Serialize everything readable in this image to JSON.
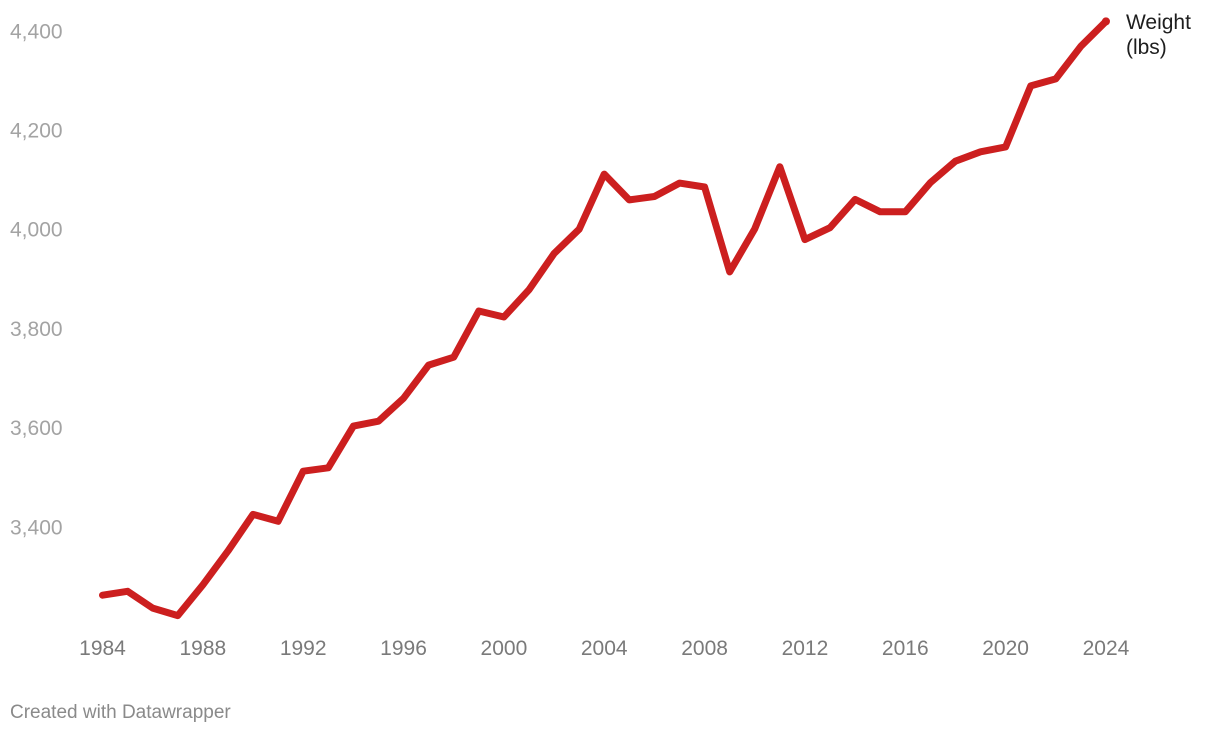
{
  "chart_data": {
    "type": "line",
    "title": "",
    "xlabel": "",
    "ylabel": "",
    "x": [
      1984,
      1985,
      1986,
      1987,
      1988,
      1989,
      1990,
      1991,
      1992,
      1993,
      1994,
      1995,
      1996,
      1997,
      1998,
      1999,
      2000,
      2001,
      2002,
      2003,
      2004,
      2005,
      2006,
      2007,
      2008,
      2009,
      2010,
      2011,
      2012,
      2013,
      2014,
      2015,
      2016,
      2017,
      2018,
      2019,
      2020,
      2021,
      2022,
      2023,
      2024
    ],
    "series": [
      {
        "name": "Weight (lbs)",
        "label_lines": [
          "Weight",
          "(lbs)"
        ],
        "color": "#cc1f1f",
        "values": [
          3262,
          3270,
          3236,
          3221,
          3283,
          3351,
          3425,
          3411,
          3512,
          3519,
          3603,
          3613,
          3659,
          3726,
          3742,
          3835,
          3823,
          3878,
          3951,
          4000,
          4111,
          4059,
          4066,
          4093,
          4085,
          3914,
          4001,
          4126,
          3979,
          4003,
          4060,
          4035,
          4035,
          4094,
          4137,
          4156,
          4166,
          4289,
          4303,
          4369,
          4419
        ]
      }
    ],
    "ylim": [
      3200,
      4450
    ],
    "yticks": [
      3400,
      3600,
      3800,
      4000,
      4200,
      4400
    ],
    "ytick_labels": [
      "3,400",
      "3,600",
      "3,800",
      "4,000",
      "4,200",
      "4,400"
    ],
    "xlim": [
      1983.9,
      2024.4
    ],
    "xticks": [
      1984,
      1988,
      1992,
      1996,
      2000,
      2004,
      2008,
      2012,
      2016,
      2020,
      2024
    ],
    "xtick_labels": [
      "1984",
      "1988",
      "1992",
      "1996",
      "2000",
      "2004",
      "2008",
      "2012",
      "2016",
      "2020",
      "2024"
    ],
    "grid": false,
    "legend": "direct label at line end"
  },
  "footer": {
    "credit": "Created with Datawrapper"
  }
}
